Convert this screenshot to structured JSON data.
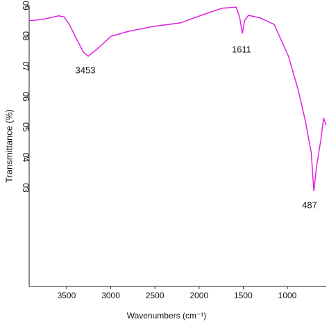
{
  "chart_data": {
    "type": "line",
    "x_label": "Wavenumbers (cm⁻¹)",
    "y_label": "Transmittance (%)",
    "x": [
      3924,
      3780,
      3590,
      3530,
      3470,
      3390,
      3310,
      3255,
      3150,
      2995,
      2800,
      2525,
      2210,
      1975,
      1740,
      1580,
      1540,
      1510,
      1485,
      1440,
      1305,
      1150,
      990,
      875,
      795,
      730,
      700,
      670,
      620,
      590,
      560
    ],
    "series": [
      {
        "color": "#e020e0",
        "values": [
          85,
          85.4,
          86.6,
          86.3,
          83.8,
          79.2,
          74.7,
          73.3,
          75.8,
          79.9,
          81.5,
          83.1,
          84.3,
          86.8,
          89.1,
          89.5,
          86.1,
          80.8,
          85,
          86.8,
          85.9,
          83.8,
          73.5,
          62,
          51.8,
          41.5,
          28.9,
          36.9,
          46,
          52.9,
          50.6
        ]
      }
    ],
    "annotations": [
      "3453",
      "1611",
      "487"
    ],
    "xlim": [
      3924,
      560
    ],
    "ylim": [
      -2.5,
      90
    ],
    "xticks": [
      3500,
      3000,
      2500,
      2000,
      1500,
      1000
    ],
    "yticks": [
      {
        "value": 90,
        "label": "09"
      },
      {
        "value": 80,
        "label": "08"
      },
      {
        "value": 70,
        "label": "07"
      },
      {
        "value": 60,
        "label": "06"
      },
      {
        "value": 50,
        "label": "05"
      },
      {
        "value": 40,
        "label": "04"
      },
      {
        "value": 30,
        "label": "03"
      }
    ],
    "grid": false
  }
}
